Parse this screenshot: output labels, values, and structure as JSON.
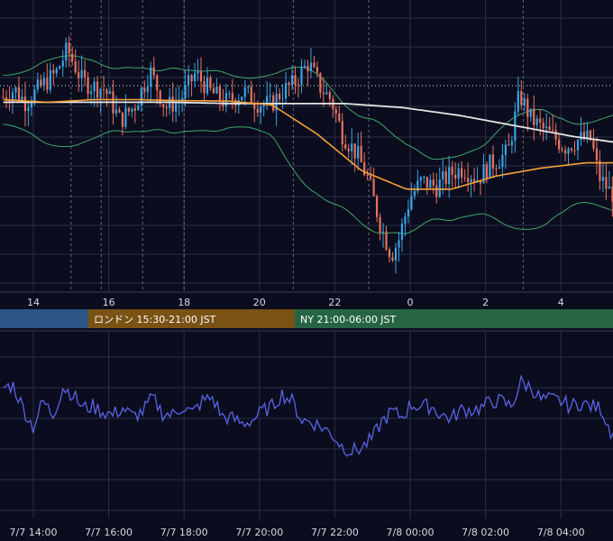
{
  "colors": {
    "background": "#0b0d1e",
    "grid": "#2a2e45",
    "candle_up": "#3ba3e3",
    "candle_down": "#e8725f",
    "sma_long": "#e6e6e6",
    "sma_short": "#f5a13a",
    "bollinger": "#3fa66a",
    "oscillator": "#5a63e8",
    "session_tokyo": "#2c5485",
    "session_london": "#7a5214",
    "session_ny": "#266543"
  },
  "price_axis_labels": [
    "14",
    "16",
    "18",
    "20",
    "22",
    "0",
    "2",
    "4"
  ],
  "sessions": [
    {
      "label": ""
    },
    {
      "label": "ロンドン 15:30-21:00 JST"
    },
    {
      "label": "NY 21:00-06:00 JST"
    }
  ],
  "osc_axis_labels": [
    "7/7 14:00",
    "7/7 16:00",
    "7/7 18:00",
    "7/7 20:00",
    "7/7 22:00",
    "7/8 00:00",
    "7/8 02:00",
    "7/8 04:00"
  ],
  "chart_data": [
    {
      "type": "candlestick",
      "x_unit": "hour of day (JST)",
      "x_range": [
        13.2,
        5.85
      ],
      "title": "",
      "xlabel": "",
      "ylabel": "",
      "y_range_relative": [
        0,
        100
      ],
      "price_path": [
        [
          13.2,
          70
        ],
        [
          13.5,
          73
        ],
        [
          13.8,
          68
        ],
        [
          14.2,
          74
        ],
        [
          14.6,
          79
        ],
        [
          14.9,
          88
        ],
        [
          15.3,
          76
        ],
        [
          15.6,
          74
        ],
        [
          15.9,
          73
        ],
        [
          16.3,
          61
        ],
        [
          16.7,
          67
        ],
        [
          17.1,
          80
        ],
        [
          17.5,
          66
        ],
        [
          17.9,
          69
        ],
        [
          18.3,
          79
        ],
        [
          18.7,
          72
        ],
        [
          19.1,
          68
        ],
        [
          19.6,
          72
        ],
        [
          19.9,
          68
        ],
        [
          20.3,
          67
        ],
        [
          20.6,
          72
        ],
        [
          20.9,
          75
        ],
        [
          21.3,
          83
        ],
        [
          21.6,
          74
        ],
        [
          21.9,
          69
        ],
        [
          22.2,
          56
        ],
        [
          22.6,
          48
        ],
        [
          22.9,
          38
        ],
        [
          23.2,
          22
        ],
        [
          23.5,
          10
        ],
        [
          23.7,
          16
        ],
        [
          24.0,
          32
        ],
        [
          24.3,
          38
        ],
        [
          24.7,
          36
        ],
        [
          25.1,
          41
        ],
        [
          25.4,
          43
        ],
        [
          25.8,
          39
        ],
        [
          26.1,
          44
        ],
        [
          26.4,
          47
        ],
        [
          26.6,
          49
        ],
        [
          26.9,
          71
        ],
        [
          27.2,
          62
        ],
        [
          27.5,
          58
        ],
        [
          27.8,
          55
        ],
        [
          28.1,
          51
        ],
        [
          28.5,
          54
        ],
        [
          28.8,
          54
        ],
        [
          29.0,
          40
        ],
        [
          29.3,
          34
        ],
        [
          29.6,
          32
        ],
        [
          29.85,
          28
        ]
      ],
      "overlays": [
        {
          "kind": "sma_long",
          "values": [
            68,
            68,
            68,
            68,
            67.5,
            67.5,
            67.5,
            66,
            63,
            59,
            55,
            52
          ]
        },
        {
          "kind": "sma_short",
          "values": [
            69,
            68,
            69,
            69,
            68.6,
            68.5,
            67,
            56,
            42,
            35,
            35,
            40,
            43,
            45,
            45
          ]
        },
        {
          "kind": "bollinger",
          "note": "upper/lower bands around sma_short"
        }
      ]
    },
    {
      "type": "line",
      "series": [
        {
          "values": [
            55,
            56,
            43,
            32,
            47,
            39,
            55,
            51,
            43,
            44,
            41,
            39,
            43,
            38,
            41,
            49,
            40,
            39,
            44,
            40,
            47,
            49,
            38,
            37,
            34,
            36,
            41,
            44,
            51,
            47,
            36,
            35,
            32,
            28,
            21,
            18,
            20,
            25,
            35,
            41,
            38,
            45,
            44,
            44,
            39,
            37,
            42,
            42,
            43,
            47,
            47,
            44,
            58,
            55,
            48,
            48,
            47,
            44,
            46,
            44,
            43,
            30,
            29,
            28
          ]
        }
      ],
      "x_range": [
        "7/7 13:10",
        "7/8 05:50"
      ],
      "y_range_relative": [
        0,
        100
      ]
    }
  ]
}
